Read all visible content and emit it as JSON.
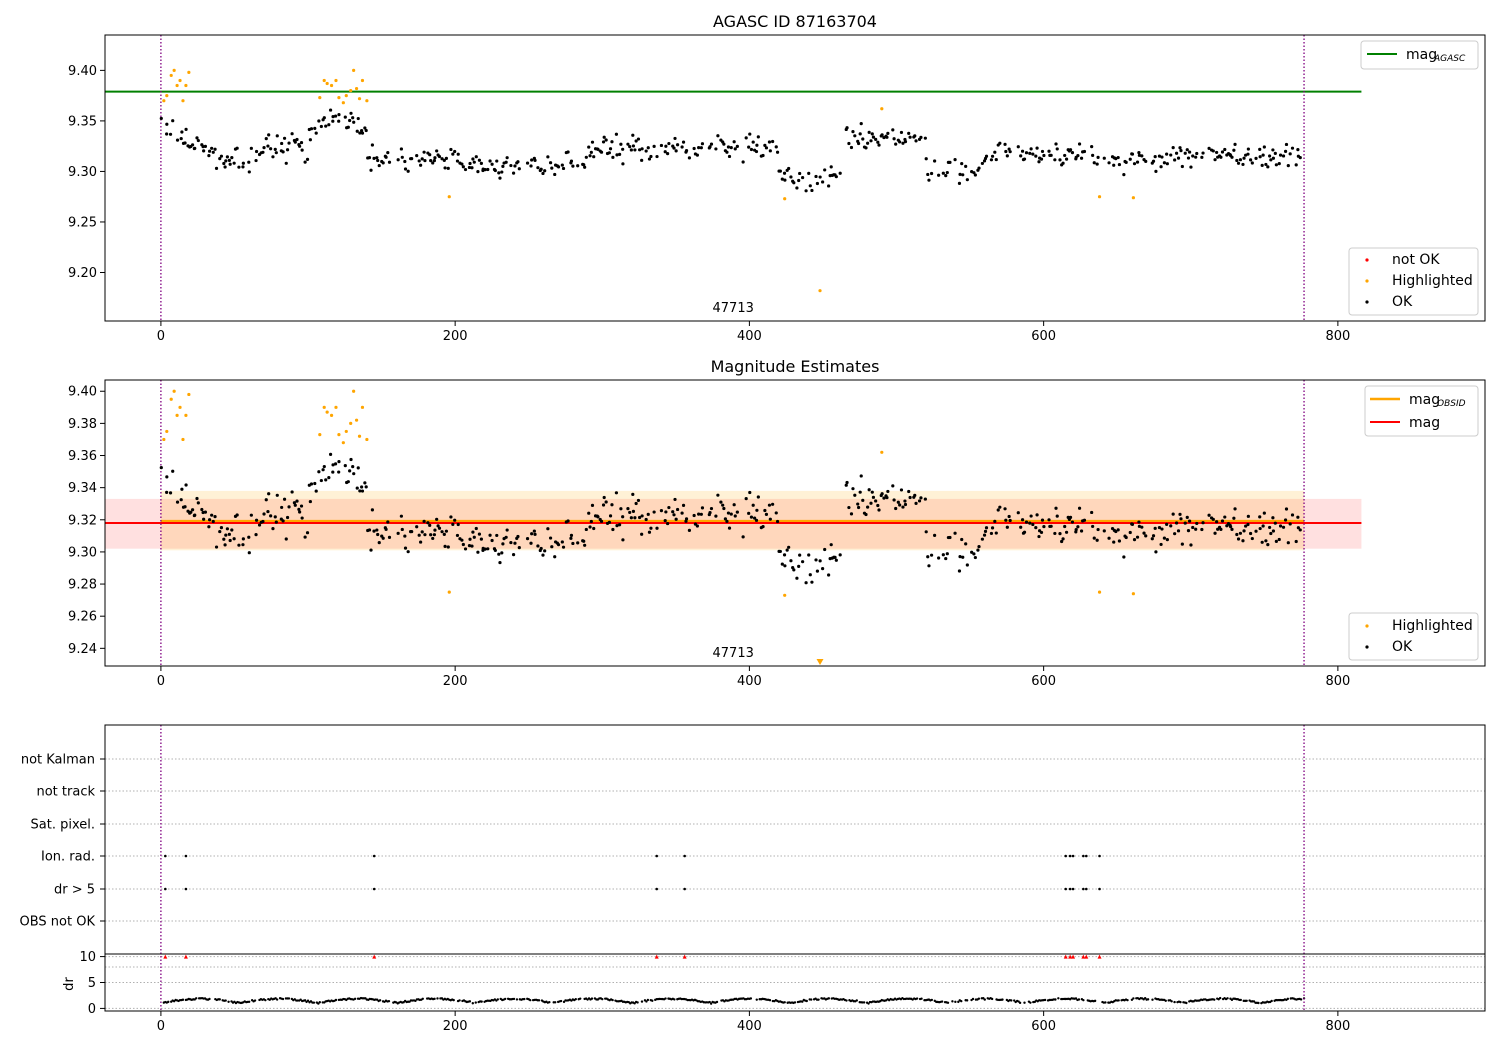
{
  "chart_data": [
    {
      "type": "scatter",
      "title": "AGASC ID 87163704",
      "xlim": [
        -38,
        900
      ],
      "ylim": [
        9.152,
        9.435
      ],
      "xticks": [
        0,
        200,
        400,
        600,
        800
      ],
      "yticks": [
        9.2,
        9.25,
        9.3,
        9.35,
        9.4
      ],
      "grid": false,
      "obsid_marker": {
        "label": "47713",
        "x": 389
      },
      "vlines": [
        0,
        777
      ],
      "hline": {
        "name": "mag_AGASC",
        "value": 9.379,
        "x_range": [
          -38,
          816
        ],
        "color": "#008000"
      },
      "series": [
        {
          "name": "not OK",
          "color": "#ff0000"
        },
        {
          "name": "Highlighted",
          "color": "#ffa500"
        },
        {
          "name": "OK",
          "color": "#000000"
        }
      ],
      "legend_top": "top-right",
      "legend_bottom": "lower-right"
    },
    {
      "type": "scatter",
      "title": "Magnitude Estimates",
      "xlim": [
        -38,
        900
      ],
      "ylim": [
        9.229,
        9.407
      ],
      "xticks": [
        0,
        200,
        400,
        600,
        800
      ],
      "yticks": [
        9.24,
        9.26,
        9.28,
        9.3,
        9.32,
        9.34,
        9.36,
        9.38,
        9.4
      ],
      "grid": false,
      "obsid_marker": {
        "label": "47713",
        "x": 389
      },
      "vlines": [
        0,
        777
      ],
      "lines": [
        {
          "name": "mag_OBSID",
          "value": 9.319,
          "band": [
            9.301,
            9.338
          ],
          "x_range": [
            0,
            777
          ],
          "color": "#ffa500"
        },
        {
          "name": "mag",
          "value": 9.318,
          "band": [
            9.302,
            9.333
          ],
          "x_range": [
            -38,
            816
          ],
          "color": "#ff0000"
        }
      ],
      "series": [
        {
          "name": "Highlighted",
          "color": "#ffa500"
        },
        {
          "name": "OK",
          "color": "#000000"
        }
      ],
      "legend_top": "top-right",
      "legend_bottom": "lower-right"
    },
    {
      "type": "scatter",
      "title": "",
      "xlim": [
        -38,
        900
      ],
      "flag_rows": [
        "not Kalman",
        "not track",
        "Sat. pixel.",
        "Ion. rad.",
        "dr > 5",
        "OBS not OK"
      ],
      "flag_points": {
        "Ion. rad.": [
          3,
          17,
          145,
          337,
          356,
          615,
          618,
          620,
          627,
          629,
          638
        ],
        "dr > 5": [
          3,
          17,
          145,
          337,
          356,
          615,
          618,
          620,
          627,
          629,
          638
        ]
      },
      "dr_axis": {
        "label": "dr",
        "ylim": [
          -0.5,
          10.5
        ],
        "yticks": [
          0,
          5,
          10
        ],
        "clip_markers_x": [
          3,
          17,
          145,
          337,
          356,
          615,
          618,
          620,
          627,
          629,
          638
        ]
      },
      "xticks": [
        0,
        200,
        400,
        600,
        800
      ],
      "vlines": [
        0,
        777
      ]
    }
  ],
  "legend": {
    "mag_agasc_main": "mag",
    "mag_agasc_sub": "AGASC",
    "mag_obsid_main": "mag",
    "mag_obsid_sub": "OBSID",
    "mag": "mag",
    "not_ok": "not OK",
    "highlighted": "Highlighted",
    "ok": "OK"
  }
}
